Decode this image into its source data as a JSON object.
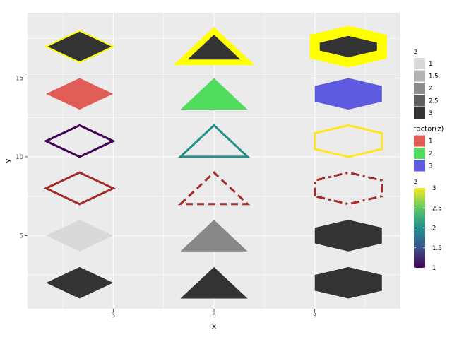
{
  "chart_data": {
    "type": "scatter",
    "title": "",
    "xlabel": "x",
    "ylabel": "y",
    "xlim": [
      0.45,
      11.55
    ],
    "ylim": [
      0.35,
      19.15
    ],
    "x_ticks": [
      3,
      6,
      9
    ],
    "y_ticks": [
      5,
      10,
      15
    ],
    "x_tick_labels": [
      "3",
      "6",
      "9"
    ],
    "y_tick_labels": [
      "5",
      "10",
      "15"
    ],
    "grid": true,
    "legend_position": "right",
    "shapes": [
      {
        "shape": "diamond",
        "x": 2,
        "y": 2,
        "z": 3,
        "style": "filled-z-gray",
        "fill": "#333333",
        "stroke": "none",
        "line": "none",
        "width": 0
      },
      {
        "shape": "diamond",
        "x": 2,
        "y": 5,
        "z": 1,
        "style": "filled-z-gray",
        "fill": "#d9d9d9",
        "stroke": "none",
        "line": "none",
        "width": 0
      },
      {
        "shape": "diamond",
        "x": 2,
        "y": 8,
        "z": 1,
        "style": "outline-linetype",
        "fill": "none",
        "stroke": "#a52a2a",
        "line": "solid",
        "width": 3
      },
      {
        "shape": "diamond",
        "x": 2,
        "y": 11,
        "z": 1,
        "style": "outline-z-viridis",
        "fill": "none",
        "stroke": "#440154",
        "line": "solid",
        "width": 3
      },
      {
        "shape": "diamond",
        "x": 2,
        "y": 14,
        "z": 1,
        "style": "fill-factor",
        "fill": "#e05c57",
        "stroke": "none",
        "line": "none",
        "width": 0
      },
      {
        "shape": "diamond",
        "x": 2,
        "y": 17,
        "z": 1,
        "style": "filled-with-yellow-outline",
        "fill": "#333333",
        "stroke": "#ffff00",
        "line": "solid",
        "width": 2
      },
      {
        "shape": "triangle",
        "x": 6,
        "y": 2,
        "z": 3,
        "style": "filled-z-gray",
        "fill": "#333333",
        "stroke": "none",
        "line": "none",
        "width": 0
      },
      {
        "shape": "triangle",
        "x": 6,
        "y": 5,
        "z": 2,
        "style": "filled-z-gray",
        "fill": "#888888",
        "stroke": "none",
        "line": "none",
        "width": 0
      },
      {
        "shape": "triangle",
        "x": 6,
        "y": 8,
        "z": 2,
        "style": "outline-linetype",
        "fill": "none",
        "stroke": "#a52a2a",
        "line": "dashed",
        "width": 3
      },
      {
        "shape": "triangle",
        "x": 6,
        "y": 11,
        "z": 2,
        "style": "outline-z-viridis",
        "fill": "none",
        "stroke": "#21908c",
        "line": "solid",
        "width": 3
      },
      {
        "shape": "triangle",
        "x": 6,
        "y": 14,
        "z": 2,
        "style": "fill-factor",
        "fill": "#52dc5e",
        "stroke": "none",
        "line": "none",
        "width": 0
      },
      {
        "shape": "triangle",
        "x": 6,
        "y": 17,
        "z": 2,
        "style": "filled-with-yellow-outline",
        "fill": "#333333",
        "stroke": "#ffff00",
        "line": "solid",
        "width": 8
      },
      {
        "shape": "hexagon",
        "x": 10,
        "y": 2,
        "z": 3,
        "style": "filled-z-gray",
        "fill": "#333333",
        "stroke": "none",
        "line": "none",
        "width": 0
      },
      {
        "shape": "hexagon",
        "x": 10,
        "y": 5,
        "z": 3,
        "style": "filled-z-gray",
        "fill": "#333333",
        "stroke": "none",
        "line": "none",
        "width": 0
      },
      {
        "shape": "hexagon",
        "x": 10,
        "y": 8,
        "z": 3,
        "style": "outline-linetype",
        "fill": "none",
        "stroke": "#a52a2a",
        "line": "dashdot",
        "width": 3
      },
      {
        "shape": "hexagon",
        "x": 10,
        "y": 11,
        "z": 3,
        "style": "outline-z-viridis",
        "fill": "none",
        "stroke": "#fde725",
        "line": "solid",
        "width": 3
      },
      {
        "shape": "hexagon",
        "x": 10,
        "y": 14,
        "z": 3,
        "style": "fill-factor",
        "fill": "#5f5be0",
        "stroke": "none",
        "line": "none",
        "width": 0
      },
      {
        "shape": "hexagon",
        "x": 10,
        "y": 17,
        "z": 3,
        "style": "filled-with-yellow-outline",
        "fill": "#333333",
        "stroke": "#ffff00",
        "line": "solid",
        "width": 14
      }
    ],
    "legends": [
      {
        "title": "z",
        "kind": "swatches",
        "items": [
          {
            "label": "1",
            "color": "#d9d9d9"
          },
          {
            "label": "1.5",
            "color": "#b3b3b3"
          },
          {
            "label": "2",
            "color": "#8c8c8c"
          },
          {
            "label": "2.5",
            "color": "#5f5f5f"
          },
          {
            "label": "3",
            "color": "#333333"
          }
        ]
      },
      {
        "title": "factor(z)",
        "kind": "swatches",
        "items": [
          {
            "label": "1",
            "color": "#e05c57"
          },
          {
            "label": "2",
            "color": "#52dc5e"
          },
          {
            "label": "3",
            "color": "#5f5be0"
          }
        ]
      },
      {
        "title": "z",
        "kind": "colorbar",
        "min": 1,
        "max": 3,
        "ticks": [
          {
            "label": "3",
            "value": 3
          },
          {
            "label": "2.5",
            "value": 2.5
          },
          {
            "label": "2",
            "value": 2
          },
          {
            "label": "1.5",
            "value": 1.5
          },
          {
            "label": "1",
            "value": 1
          }
        ],
        "colors": [
          "#440154",
          "#3b528b",
          "#21908c",
          "#5dc963",
          "#fde725"
        ]
      }
    ]
  }
}
